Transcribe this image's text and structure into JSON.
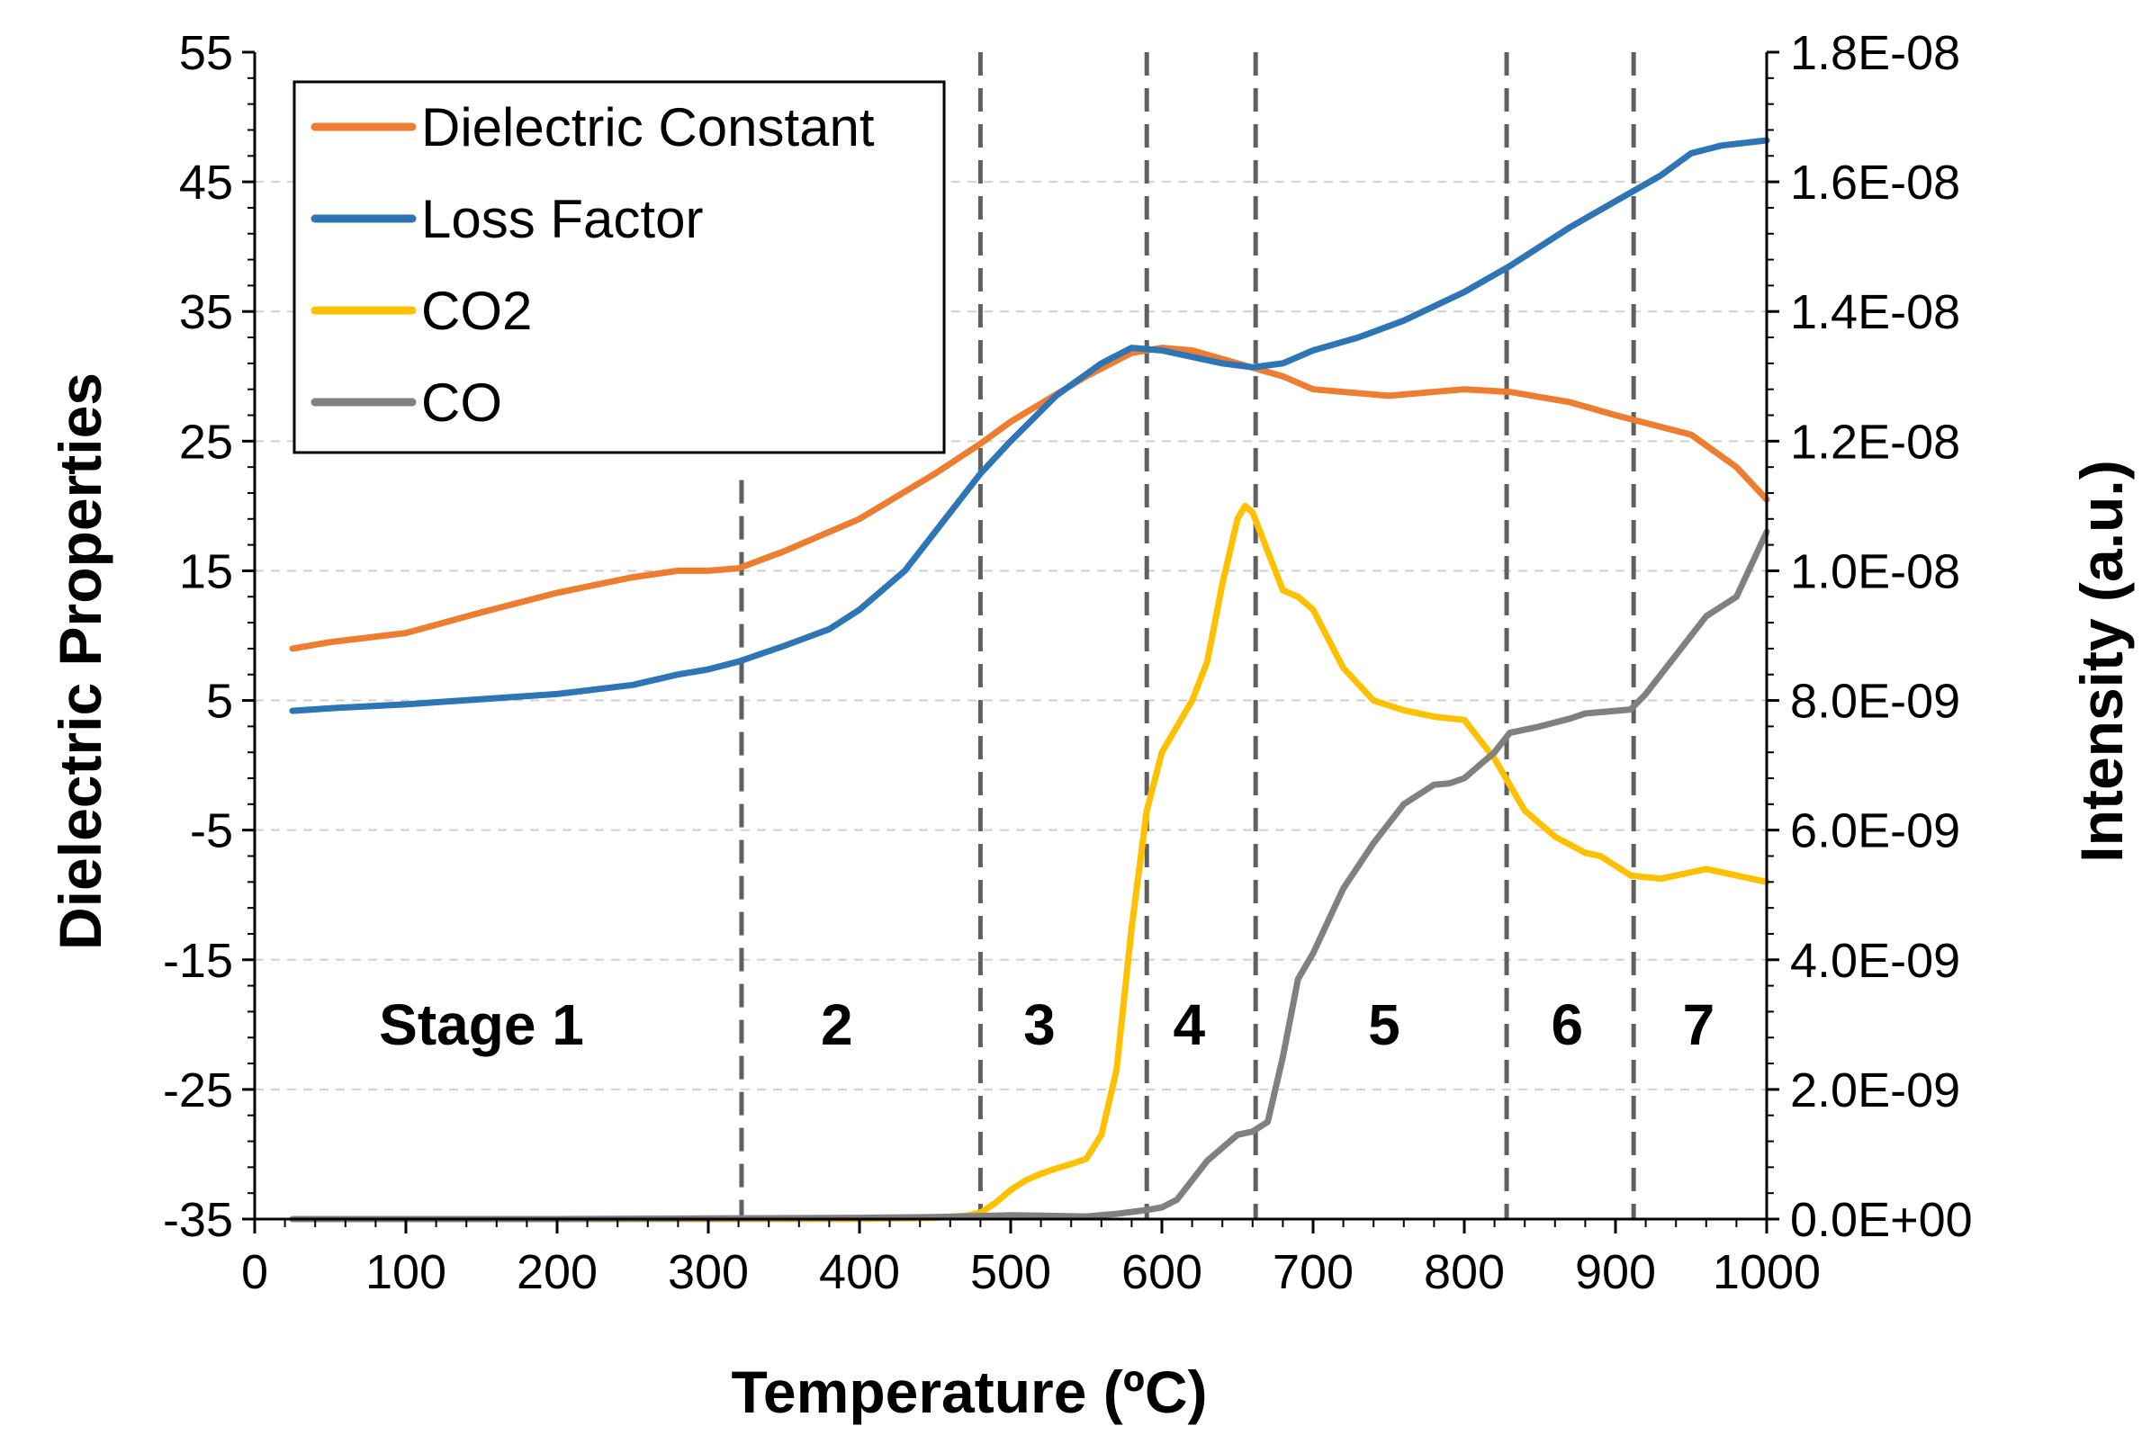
{
  "chart_data": {
    "type": "line",
    "xlabel": "Temperature (ºC)",
    "ylabel_left": "Dielectric Properties",
    "ylabel_right": "Intensity (a.u.)",
    "xlim": [
      0,
      1000
    ],
    "ylim_left": [
      -35,
      55
    ],
    "ylim_right": [
      0,
      1.8e-08
    ],
    "x_ticks": [
      "0",
      "100",
      "200",
      "300",
      "400",
      "500",
      "600",
      "700",
      "800",
      "900",
      "1000"
    ],
    "y_left_ticks": [
      "55",
      "45",
      "35",
      "25",
      "15",
      "5",
      "-5",
      "-15",
      "-25",
      "-35"
    ],
    "y_right_ticks": [
      "1.8E-08",
      "1.6E-08",
      "1.4E-08",
      "1.2E-08",
      "1.0E-08",
      "8.0E-09",
      "6.0E-09",
      "4.0E-09",
      "2.0E-09",
      "0.0E+00"
    ],
    "grid": true,
    "legend_position": "top-left",
    "colors": {
      "dielectric_constant": "#ED7D31",
      "loss_factor": "#2E75B6",
      "co2": "#FFC000",
      "co": "#808080",
      "stage_line": "#606060"
    },
    "series": [
      {
        "name": "Dielectric Constant",
        "axis": "left",
        "x": [
          25,
          50,
          100,
          150,
          200,
          250,
          280,
          300,
          320,
          350,
          400,
          450,
          480,
          500,
          550,
          580,
          600,
          620,
          650,
          680,
          700,
          750,
          800,
          830,
          870,
          900,
          950,
          980,
          1000
        ],
        "values": [
          9,
          9.5,
          10.2,
          11.8,
          13.3,
          14.5,
          15,
          15,
          15.2,
          16.5,
          19,
          22.5,
          24.8,
          26.5,
          30,
          31.8,
          32.2,
          32,
          31,
          30,
          29,
          28.5,
          29,
          28.8,
          28,
          27,
          25.5,
          23,
          20.5
        ]
      },
      {
        "name": "Loss Factor",
        "axis": "left",
        "x": [
          25,
          50,
          100,
          150,
          200,
          250,
          280,
          300,
          320,
          350,
          380,
          400,
          430,
          450,
          480,
          500,
          530,
          560,
          580,
          600,
          620,
          640,
          660,
          680,
          700,
          730,
          760,
          800,
          830,
          870,
          900,
          930,
          950,
          970,
          1000
        ],
        "values": [
          4.2,
          4.4,
          4.7,
          5.1,
          5.5,
          6.2,
          7,
          7.4,
          8,
          9.2,
          10.5,
          12,
          15,
          18,
          22.5,
          25,
          28.5,
          31,
          32.2,
          32,
          31.5,
          31,
          30.7,
          31,
          32,
          33,
          34.3,
          36.5,
          38.5,
          41.5,
          43.5,
          45.5,
          47.2,
          47.8,
          48.2
        ]
      },
      {
        "name": "CO2",
        "axis": "right",
        "x": [
          25,
          100,
          200,
          300,
          400,
          450,
          470,
          480,
          490,
          500,
          510,
          520,
          530,
          540,
          550,
          560,
          570,
          580,
          590,
          600,
          610,
          620,
          630,
          640,
          650,
          655,
          660,
          670,
          680,
          690,
          700,
          720,
          740,
          760,
          780,
          800,
          820,
          840,
          860,
          880,
          890,
          910,
          930,
          950,
          960,
          980,
          1000
        ],
        "values": [
          0,
          0,
          0,
          0,
          0,
          2e-11,
          5e-11,
          1e-10,
          2.5e-10,
          4.5e-10,
          6e-10,
          7e-10,
          7.8e-10,
          8.5e-10,
          9.3e-10,
          1.3e-09,
          2.3e-09,
          4.5e-09,
          6.3e-09,
          7.2e-09,
          7.6e-09,
          8e-09,
          8.6e-09,
          9.8e-09,
          1.08e-08,
          1.1e-08,
          1.09e-08,
          1.03e-08,
          9.7e-09,
          9.6e-09,
          9.4e-09,
          8.5e-09,
          8e-09,
          7.85e-09,
          7.75e-09,
          7.7e-09,
          7.1e-09,
          6.3e-09,
          5.9e-09,
          5.65e-09,
          5.6e-09,
          5.3e-09,
          5.25e-09,
          5.35e-09,
          5.4e-09,
          5.3e-09,
          5.2e-09
        ]
      },
      {
        "name": "CO",
        "axis": "right",
        "x": [
          25,
          100,
          200,
          300,
          400,
          450,
          500,
          550,
          570,
          590,
          600,
          610,
          620,
          630,
          650,
          660,
          670,
          680,
          690,
          700,
          720,
          740,
          760,
          780,
          790,
          800,
          820,
          830,
          850,
          870,
          880,
          910,
          920,
          940,
          960,
          980,
          1000
        ],
        "values": [
          0,
          0,
          0,
          1e-11,
          2e-11,
          3e-11,
          6e-11,
          4e-11,
          8e-11,
          1.4e-10,
          1.8e-10,
          3e-10,
          6e-10,
          9e-10,
          1.3e-09,
          1.35e-09,
          1.5e-09,
          2.5e-09,
          3.7e-09,
          4.1e-09,
          5.1e-09,
          5.8e-09,
          6.4e-09,
          6.7e-09,
          6.72e-09,
          6.8e-09,
          7.2e-09,
          7.5e-09,
          7.6e-09,
          7.72e-09,
          7.8e-09,
          7.86e-09,
          8.1e-09,
          8.7e-09,
          9.3e-09,
          9.6e-09,
          1.06e-08
        ]
      }
    ],
    "stage_boundaries": [
      {
        "x": 322,
        "y_top": 22
      },
      {
        "x": 480,
        "y_top": 55
      },
      {
        "x": 590,
        "y_top": 55
      },
      {
        "x": 662,
        "y_top": 55
      },
      {
        "x": 828,
        "y_top": 55
      },
      {
        "x": 912,
        "y_top": 55
      }
    ],
    "stage_labels": [
      {
        "text": "Stage 1",
        "x": 150,
        "y": -20
      },
      {
        "text": "2",
        "x": 385,
        "y": -20
      },
      {
        "text": "3",
        "x": 519,
        "y": -20
      },
      {
        "text": "4",
        "x": 618,
        "y": -20
      },
      {
        "text": "5",
        "x": 747,
        "y": -20
      },
      {
        "text": "6",
        "x": 868,
        "y": -20
      },
      {
        "text": "7",
        "x": 955,
        "y": -20
      }
    ]
  }
}
